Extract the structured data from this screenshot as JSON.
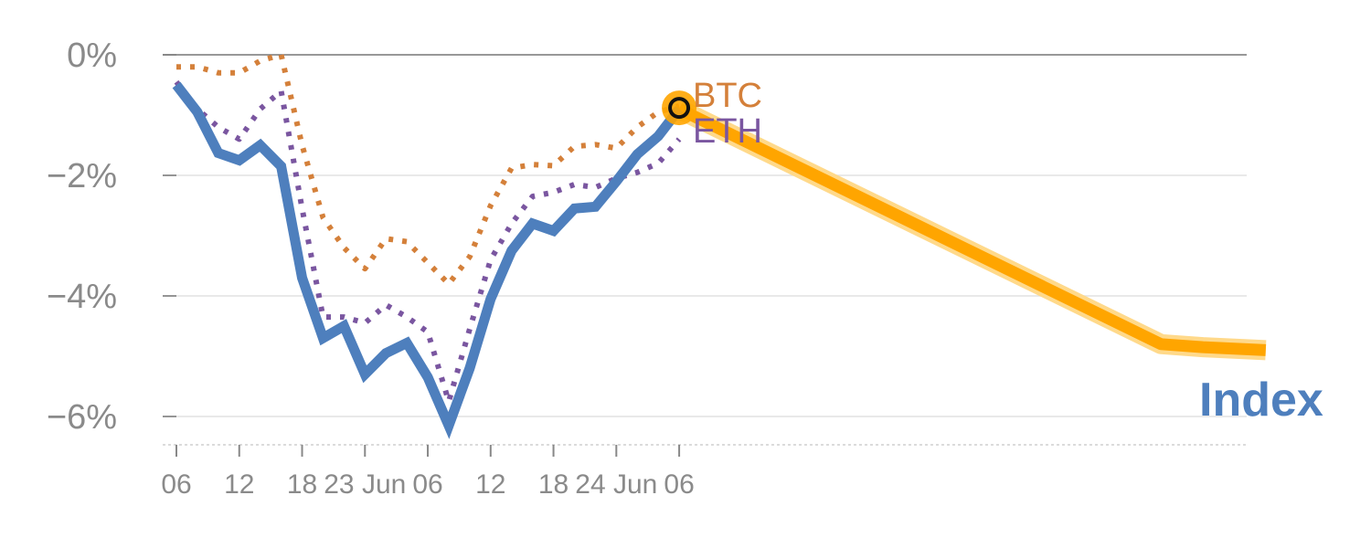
{
  "chart_data": {
    "type": "line",
    "title": "",
    "xlabel": "",
    "ylabel": "",
    "ylim": [
      -6.4,
      0
    ],
    "x_tick_labels": [
      "06",
      "12",
      "18",
      "23 Jun",
      "06",
      "12",
      "18",
      "24 Jun",
      "06"
    ],
    "y_tick_labels": [
      "0%",
      "−2%",
      "−4%",
      "−6%"
    ],
    "y_tick_values": [
      0,
      -2,
      -4,
      -6
    ],
    "grid": true,
    "time_step_hours": 2,
    "x_tick_steps": [
      0,
      3,
      6,
      9,
      12,
      15,
      18,
      21,
      24
    ],
    "series": [
      {
        "name": "Index",
        "color": "#4e7fbd",
        "style": "solid",
        "start_step": 0,
        "values": [
          -0.5,
          -0.95,
          -1.63,
          -1.75,
          -1.5,
          -1.85,
          -3.7,
          -4.7,
          -4.5,
          -5.3,
          -4.95,
          -4.78,
          -5.35,
          -6.15,
          -5.2,
          -4.05,
          -3.25,
          -2.8,
          -2.92,
          -2.55,
          -2.52,
          -2.1,
          -1.65,
          -1.35,
          -0.9
        ]
      },
      {
        "name": "BTC",
        "color": "#d4803a",
        "style": "dotted",
        "start_step": 0,
        "values": [
          -0.2,
          -0.2,
          -0.3,
          -0.3,
          -0.1,
          0.0,
          -1.5,
          -2.7,
          -3.2,
          -3.55,
          -3.05,
          -3.1,
          -3.45,
          -3.8,
          -3.35,
          -2.5,
          -1.88,
          -1.82,
          -1.84,
          -1.52,
          -1.49,
          -1.55,
          -1.2,
          -0.95,
          -0.85
        ]
      },
      {
        "name": "ETH",
        "color": "#7a56a0",
        "style": "dotted",
        "start_step": 0,
        "values": [
          -0.45,
          -0.9,
          -1.2,
          -1.4,
          -0.9,
          -0.6,
          -2.55,
          -4.35,
          -4.35,
          -4.45,
          -4.15,
          -4.35,
          -4.6,
          -5.75,
          -4.55,
          -3.4,
          -2.8,
          -2.35,
          -2.28,
          -2.15,
          -2.2,
          -2.05,
          -1.95,
          -1.8,
          -1.4
        ]
      },
      {
        "name": "",
        "color": "#ffa500",
        "style": "projection",
        "start_step": 24,
        "values": [
          -0.9,
          -4.8,
          -4.85,
          -4.9
        ],
        "steps": [
          24,
          47,
          49,
          52
        ]
      }
    ],
    "marker": {
      "step": 24,
      "value": -0.88
    },
    "labels": {
      "btc": "BTC",
      "eth": "ETH",
      "index": "Index"
    }
  }
}
